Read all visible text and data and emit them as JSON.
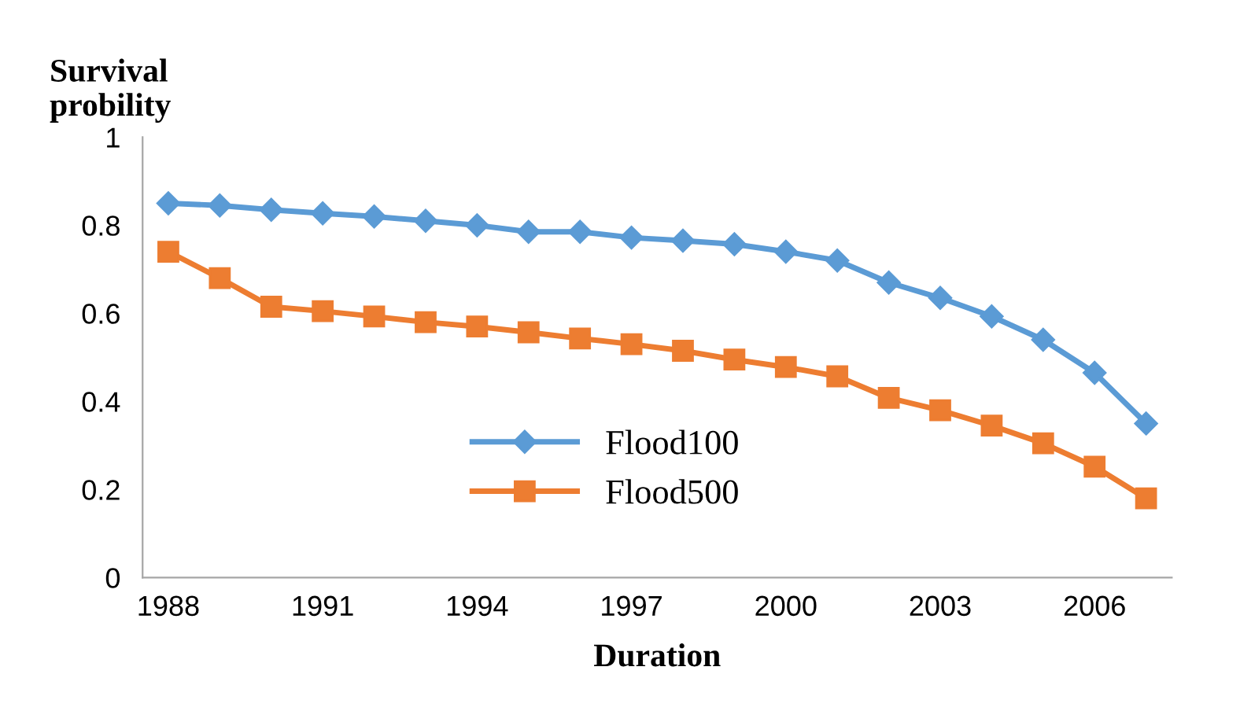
{
  "chart_data": {
    "type": "line",
    "ylabel": "Survival\nprobility",
    "xlabel": "Duration",
    "categories": [
      "1988",
      null,
      null,
      "1991",
      null,
      null,
      "1994",
      null,
      null,
      "1997",
      null,
      null,
      "2000",
      null,
      null,
      "2003",
      null,
      null,
      "2006",
      null
    ],
    "series": [
      {
        "name": "Flood100",
        "color": "#5b9bd5",
        "marker": "diamond",
        "values": [
          0.85,
          0.845,
          0.835,
          0.827,
          0.82,
          0.81,
          0.8,
          0.785,
          0.785,
          0.772,
          0.765,
          0.757,
          0.74,
          0.72,
          0.67,
          0.635,
          0.593,
          0.54,
          0.465,
          0.35
        ]
      },
      {
        "name": "Flood500",
        "color": "#ed7d31",
        "marker": "square",
        "values": [
          0.74,
          0.68,
          0.615,
          0.605,
          0.593,
          0.58,
          0.57,
          0.557,
          0.543,
          0.53,
          0.515,
          0.495,
          0.478,
          0.457,
          0.408,
          0.38,
          0.345,
          0.305,
          0.252,
          0.18
        ]
      }
    ],
    "ylim": [
      0,
      1
    ],
    "yticks": [
      0,
      {
        "value": 0.2,
        "label": "0.2"
      },
      {
        "value": 0.4,
        "label": "0.4"
      },
      {
        "value": 0.6,
        "label": "0.6"
      },
      {
        "value": 0.8,
        "label": "0.8"
      },
      1
    ],
    "grid": false,
    "legend": "bottom",
    "line_style": "solid"
  }
}
